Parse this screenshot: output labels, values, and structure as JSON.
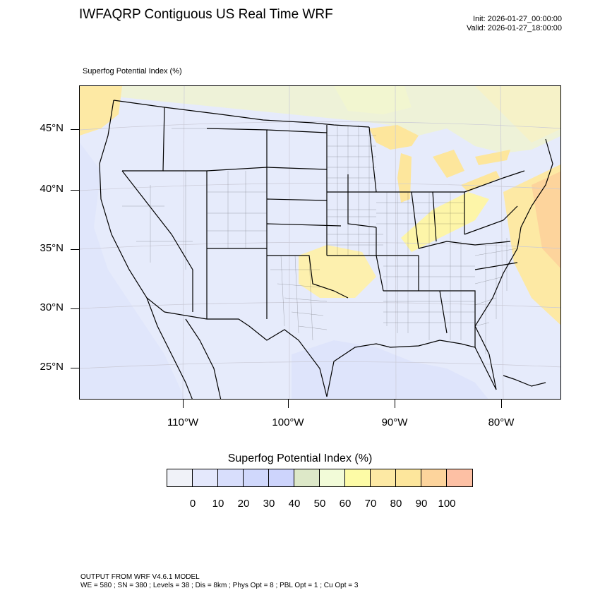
{
  "header": {
    "title": "IWFAQRP Contiguous US Real Time WRF",
    "init": "Init: 2026-01-27_00:00:00",
    "valid": "Valid: 2026-01-27_18:00:00"
  },
  "map": {
    "field_label": "Superfog Potential Index   (%)",
    "lat_labels": [
      "45°N",
      "40°N",
      "35°N",
      "30°N",
      "25°N"
    ],
    "lon_labels": [
      "110°W",
      "100°W",
      "90°W",
      "80°W"
    ]
  },
  "colorbar": {
    "title": "Superfog Potential Index  (%)",
    "tick_labels": [
      "0",
      "10",
      "20",
      "30",
      "40",
      "50",
      "60",
      "70",
      "80",
      "90",
      "100"
    ],
    "colors": [
      "#f0f2f8",
      "#e4e8fc",
      "#d8defc",
      "#d0d8fc",
      "#cdd4fc",
      "#dde8c8",
      "#f2fbd8",
      "#fdfba6",
      "#fde9a4",
      "#fde69c",
      "#fdd49c",
      "#fdc0a4"
    ]
  },
  "footer": {
    "line1": "OUTPUT FROM WRF V4.6.1 MODEL",
    "line2": "WE = 580 ; SN = 380 ; Levels = 38 ; Dis = 8km ; Phys Opt = 8 ; PBL Opt = 1 ; Cu Opt = 3"
  }
}
